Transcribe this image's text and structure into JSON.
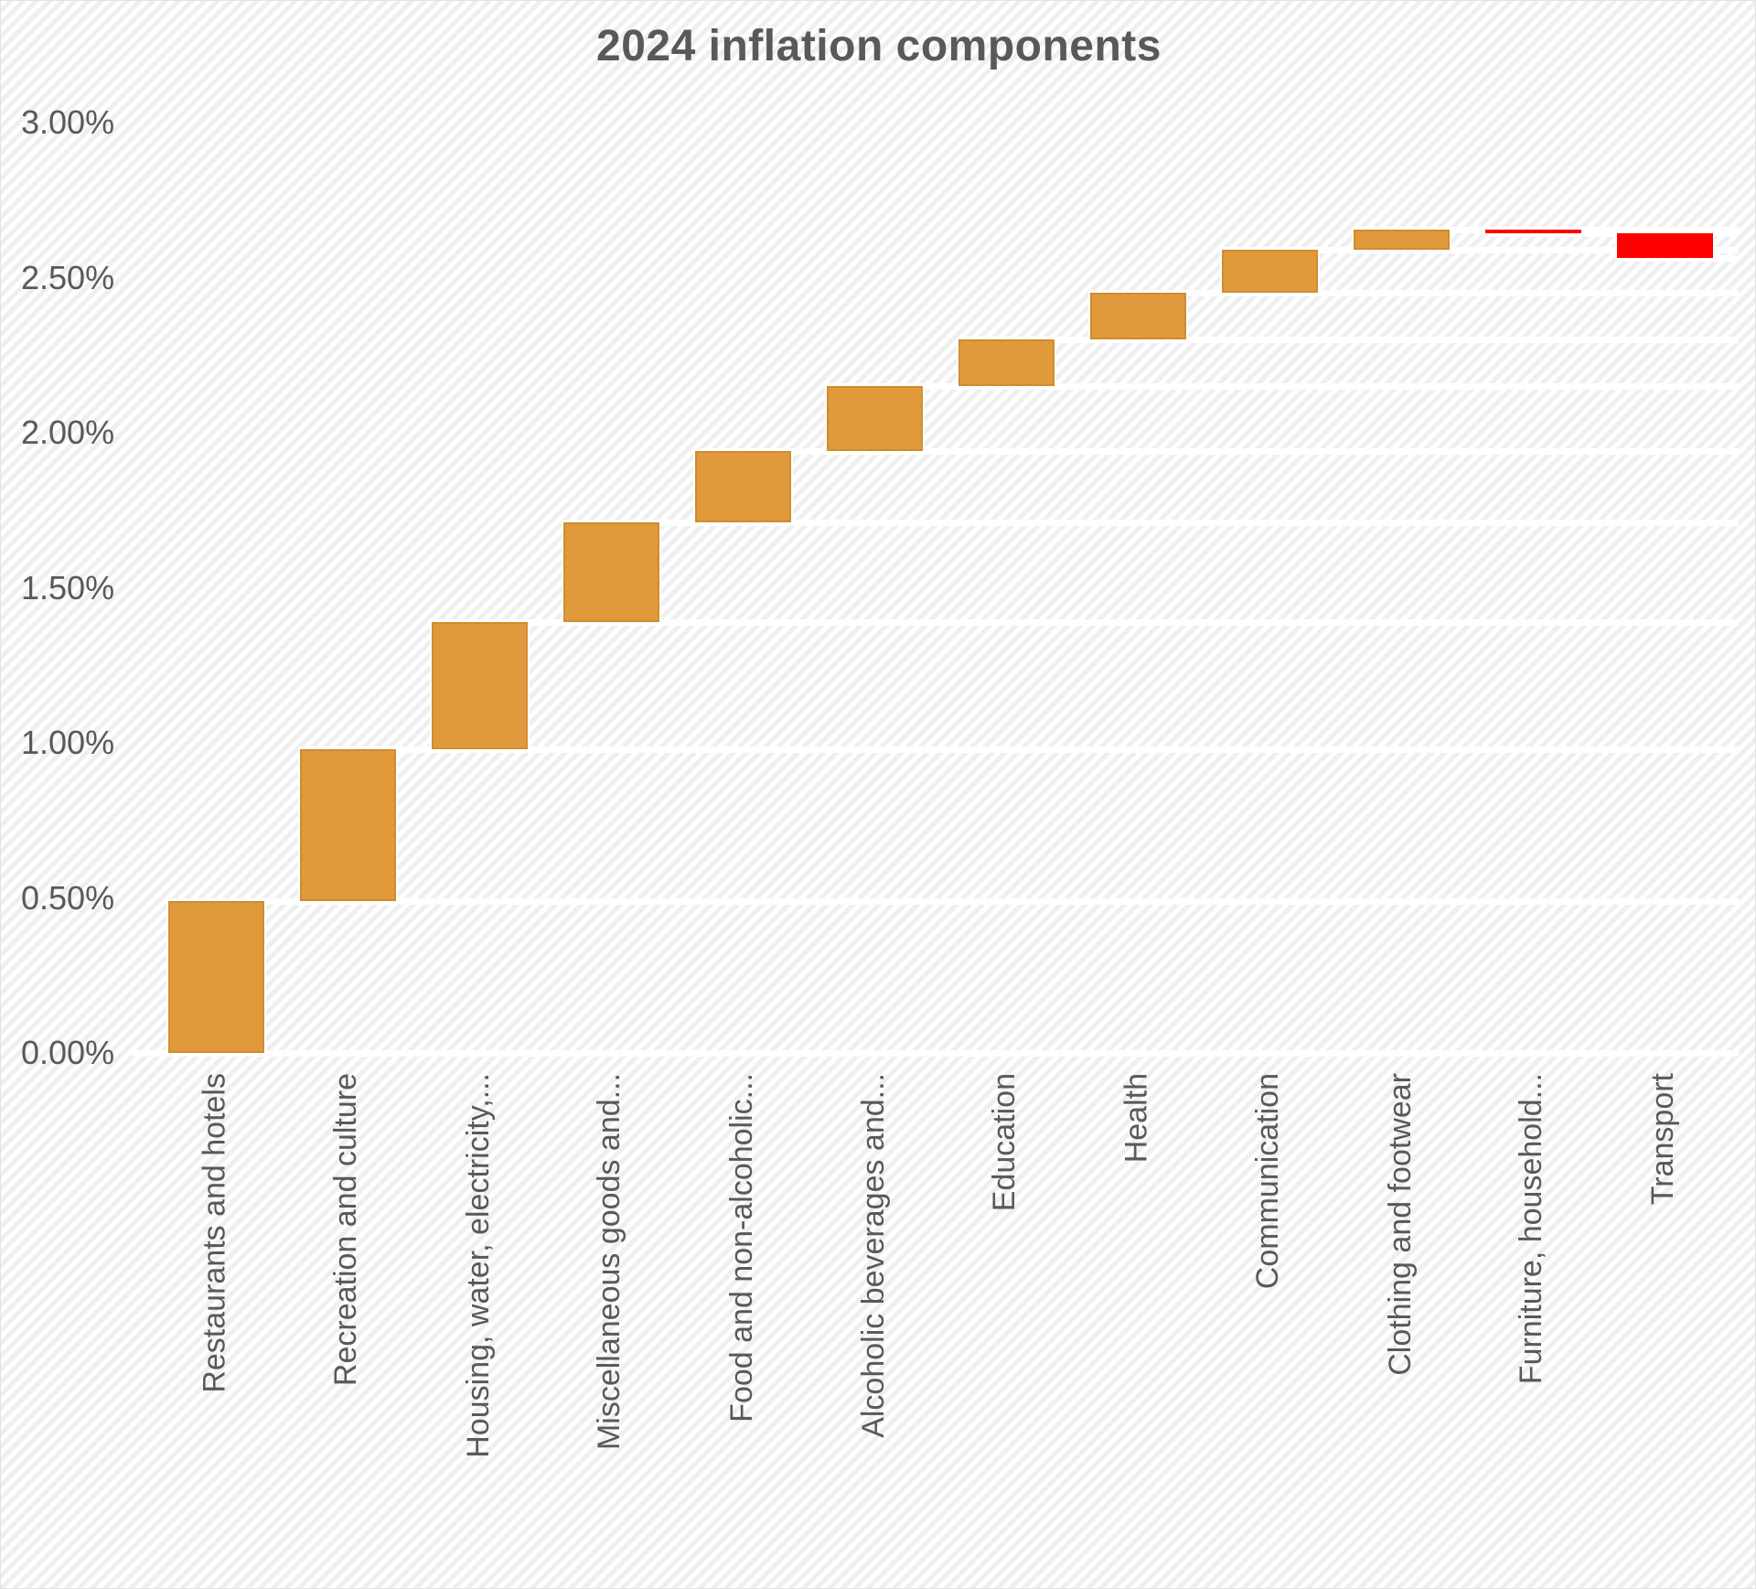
{
  "title": "2024 inflation components",
  "chart_data": {
    "type": "bar",
    "subtype": "waterfall",
    "title": "2024 inflation components",
    "categories": [
      "Restaurants and hotels",
      "Recreation and culture",
      "Housing, water, electricity,...",
      "Miscellaneous goods and...",
      "Food and non-alcoholic...",
      "Alcoholic beverages and...",
      "Education",
      "Health",
      "Communication",
      "Clothing and footwear",
      "Furniture, household...",
      "Transport"
    ],
    "values": [
      0.49,
      0.49,
      0.41,
      0.32,
      0.23,
      0.21,
      0.15,
      0.15,
      0.14,
      0.065,
      -0.012,
      -0.079
    ],
    "items": [
      {
        "label": "Restaurants and hotels",
        "value": 0.49,
        "start": 0,
        "end": 0.49,
        "direction": "increase"
      },
      {
        "label": "Recreation and culture",
        "value": 0.49,
        "start": 0.49,
        "end": 0.98,
        "direction": "increase"
      },
      {
        "label": "Housing, water, electricity,...",
        "value": 0.41,
        "start": 0.98,
        "end": 1.39,
        "direction": "increase"
      },
      {
        "label": "Miscellaneous goods and...",
        "value": 0.32,
        "start": 1.39,
        "end": 1.71,
        "direction": "increase"
      },
      {
        "label": "Food and non-alcoholic...",
        "value": 0.23,
        "start": 1.71,
        "end": 1.94,
        "direction": "increase"
      },
      {
        "label": "Alcoholic beverages and...",
        "value": 0.21,
        "start": 1.94,
        "end": 2.15,
        "direction": "increase"
      },
      {
        "label": "Education",
        "value": 0.15,
        "start": 2.15,
        "end": 2.3,
        "direction": "increase"
      },
      {
        "label": "Health",
        "value": 0.15,
        "start": 2.3,
        "end": 2.45,
        "direction": "increase"
      },
      {
        "label": "Communication",
        "value": 0.14,
        "start": 2.45,
        "end": 2.59,
        "direction": "increase"
      },
      {
        "label": "Clothing and footwear",
        "value": 0.065,
        "start": 2.59,
        "end": 2.655,
        "direction": "increase"
      },
      {
        "label": "Furniture, household...",
        "value": -0.012,
        "start": 2.655,
        "end": 2.643,
        "direction": "decrease"
      },
      {
        "label": "Transport",
        "value": -0.079,
        "start": 2.643,
        "end": 2.564,
        "direction": "decrease"
      }
    ],
    "y_axis": {
      "ticks": [
        {
          "label": "3.00%",
          "value": 3.0
        },
        {
          "label": "2.50%",
          "value": 2.5
        },
        {
          "label": "2.00%",
          "value": 2.0
        },
        {
          "label": "1.50%",
          "value": 1.5
        },
        {
          "label": "1.00%",
          "value": 1.0
        },
        {
          "label": "0.50%",
          "value": 0.5
        },
        {
          "label": "0.00%",
          "value": 0.0
        }
      ],
      "ylim": [
        0,
        3
      ]
    },
    "colors": {
      "increase": "#E09A3C",
      "increase_border": "#CF8C2F",
      "decrease": "#FE0000",
      "text": "#595959"
    },
    "grid": false,
    "legend": false
  }
}
